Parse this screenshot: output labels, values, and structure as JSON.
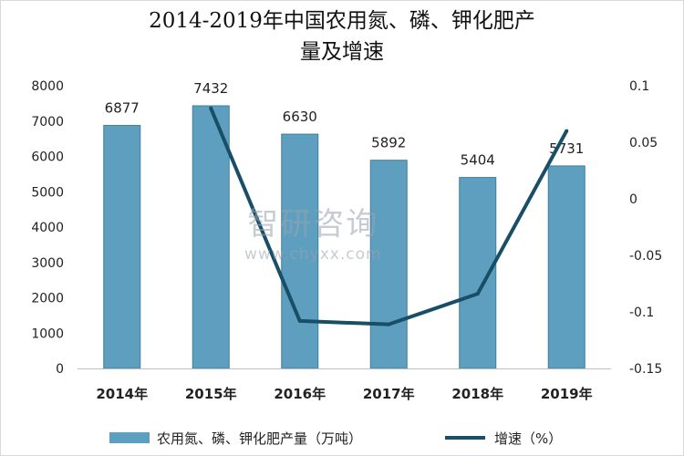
{
  "colors": {
    "bar": "#5e9fc0",
    "bar_edge": "#3f7f9f",
    "line": "#184f67",
    "axis": "#bfbfbf",
    "text": "#222222"
  },
  "watermark": {
    "brand": "智研咨询",
    "url": "www.chyxx.com"
  },
  "chart_data": {
    "type": "bar",
    "title": "2014-2019年中国农用氮、磷、钾化肥产量及增速",
    "title_lines": [
      "2014-2019年中国农用氮、磷、钾化肥产",
      "量及增速"
    ],
    "categories": [
      "2014年",
      "2015年",
      "2016年",
      "2017年",
      "2018年",
      "2019年"
    ],
    "series": [
      {
        "name": "农用氮、磷、钾化肥产量（万吨）",
        "type": "bar",
        "axis": "left",
        "values": [
          6877,
          7432,
          6630,
          5892,
          5404,
          5731
        ],
        "labels": [
          "6877",
          "7432",
          "6630",
          "5892",
          "5404",
          "5731"
        ]
      },
      {
        "name": "增速（%）",
        "type": "line",
        "axis": "right",
        "values": [
          null,
          0.08,
          -0.108,
          -0.111,
          -0.084,
          0.06
        ]
      }
    ],
    "y_left": {
      "min": 0,
      "max": 8000,
      "ticks": [
        "0",
        "1000",
        "2000",
        "3000",
        "4000",
        "5000",
        "6000",
        "7000",
        "8000"
      ]
    },
    "y_right": {
      "min": -0.15,
      "max": 0.1,
      "ticks": [
        "-0.15",
        "-0.1",
        "-0.05",
        "0",
        "0.05",
        "0.1"
      ]
    },
    "grid": false,
    "legend_position": "bottom"
  }
}
